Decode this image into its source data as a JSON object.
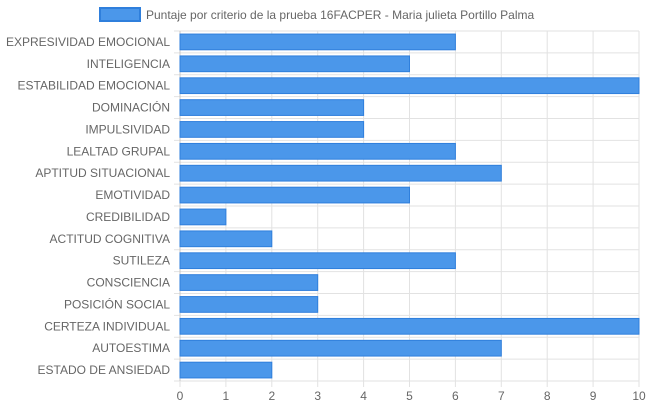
{
  "chart_data": {
    "type": "bar",
    "orientation": "horizontal",
    "categories": [
      "EXPRESIVIDAD EMOCIONAL",
      "INTELIGENCIA",
      "ESTABILIDAD EMOCIONAL",
      "DOMINACIÓN",
      "IMPULSIVIDAD",
      "LEALTAD GRUPAL",
      "APTITUD SITUACIONAL",
      "EMOTIVIDAD",
      "CREDIBILIDAD",
      "ACTITUD COGNITIVA",
      "SUTILEZA",
      "CONSCIENCIA",
      "POSICIÓN SOCIAL",
      "CERTEZA INDIVIDUAL",
      "AUTOESTIMA",
      "ESTADO DE ANSIEDAD"
    ],
    "series": [
      {
        "name": "Puntaje por criterio de la prueba 16FACPER - Maria julieta Portillo Palma",
        "values": [
          6,
          5,
          10,
          4,
          4,
          6,
          7,
          5,
          1,
          2,
          6,
          3,
          3,
          10,
          7,
          2
        ],
        "color": "#4b97ea",
        "border_color": "#2f7fdc"
      }
    ],
    "xlim": [
      0,
      10
    ],
    "x_ticks": [
      "0",
      "1",
      "2",
      "3",
      "4",
      "5",
      "6",
      "7",
      "8",
      "9",
      "10"
    ],
    "grid": true,
    "legend_position": "top"
  }
}
